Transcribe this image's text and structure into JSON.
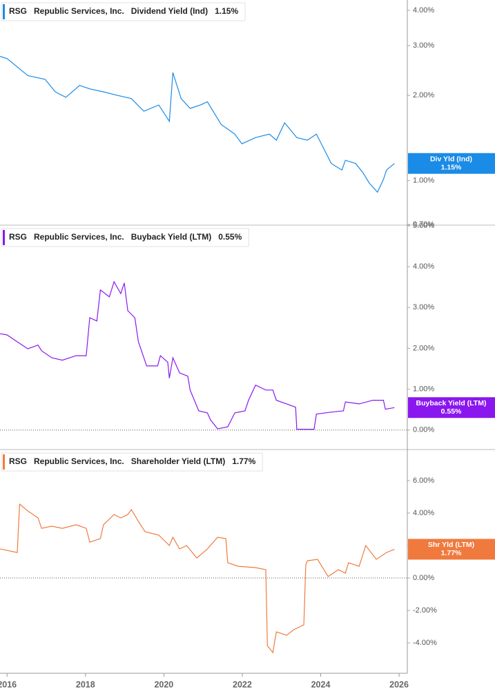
{
  "chart_data": [
    {
      "type": "line",
      "log_scale": true,
      "zero_line": false,
      "ticker": "RSG",
      "company": "Republic Services, Inc.",
      "current_value": "1.15%",
      "tag_label": "Div Yld (Ind)",
      "tag_value": "1.15%",
      "xlim": [
        2015.82,
        2026.21
      ],
      "ylim": [
        0.7,
        4.35
      ],
      "yticks": [
        {
          "value": 0.7,
          "label": "0.70%"
        },
        {
          "value": 1,
          "label": "1.00%"
        },
        {
          "value": 2,
          "label": "2.00%"
        },
        {
          "value": 3,
          "label": "3.00%"
        },
        {
          "value": 4,
          "label": "4.00%"
        }
      ],
      "x": [
        2015.82,
        2016.0,
        2016.53,
        2016.97,
        2017.23,
        2017.5,
        2017.85,
        2018.11,
        2018.46,
        2018.82,
        2019.17,
        2019.49,
        2019.87,
        2020.14,
        2020.23,
        2020.44,
        2020.67,
        2020.93,
        2021.11,
        2021.46,
        2021.81,
        2021.99,
        2022.34,
        2022.69,
        2022.87,
        2023.08,
        2023.39,
        2023.66,
        2023.89,
        2024.1,
        2024.27,
        2024.54,
        2024.63,
        2024.89,
        2025.07,
        2025.24,
        2025.45,
        2025.6,
        2025.68,
        2025.88
      ],
      "series": [
        {
          "name": "Dividend Yield (Ind)",
          "color": "#1a8be6",
          "values": [
            2.75,
            2.7,
            2.35,
            2.28,
            2.06,
            1.97,
            2.17,
            2.11,
            2.06,
            2.0,
            1.95,
            1.76,
            1.85,
            1.62,
            2.41,
            1.95,
            1.8,
            1.85,
            1.9,
            1.58,
            1.46,
            1.35,
            1.42,
            1.46,
            1.39,
            1.6,
            1.42,
            1.39,
            1.46,
            1.28,
            1.15,
            1.09,
            1.18,
            1.15,
            1.07,
            0.98,
            0.91,
            1.01,
            1.09,
            1.15
          ]
        }
      ]
    },
    {
      "type": "line",
      "log_scale": false,
      "zero_line": true,
      "ticker": "RSG",
      "company": "Republic Services, Inc.",
      "current_value": "0.55%",
      "tag_label": "Buyback Yield (LTM)",
      "tag_value": "0.55%",
      "xlim": [
        2015.82,
        2026.21
      ],
      "ylim": [
        -0.46,
        5.0
      ],
      "yticks": [
        {
          "value": 0,
          "label": "0.00%"
        },
        {
          "value": 1,
          "label": "1.00%"
        },
        {
          "value": 2,
          "label": "2.00%"
        },
        {
          "value": 3,
          "label": "3.00%"
        },
        {
          "value": 4,
          "label": "4.00%"
        },
        {
          "value": 5,
          "label": "5.00%"
        }
      ],
      "x": [
        2015.82,
        2016.0,
        2016.26,
        2016.53,
        2016.79,
        2016.88,
        2017.14,
        2017.41,
        2017.76,
        2018.02,
        2018.11,
        2018.29,
        2018.38,
        2018.61,
        2018.73,
        2018.9,
        2018.99,
        2019.08,
        2019.26,
        2019.35,
        2019.56,
        2019.84,
        2019.91,
        2020.1,
        2020.14,
        2020.23,
        2020.4,
        2020.61,
        2020.67,
        2020.89,
        2021.11,
        2021.19,
        2021.37,
        2021.63,
        2021.81,
        2022.07,
        2022.16,
        2022.34,
        2022.6,
        2022.78,
        2022.87,
        2023.13,
        2023.36,
        2023.39,
        2023.83,
        2023.89,
        2024.27,
        2024.58,
        2024.63,
        2024.98,
        2025.33,
        2025.6,
        2025.65,
        2025.88
      ],
      "series": [
        {
          "name": "Buyback Yield (LTM)",
          "color": "#8a17ee",
          "values": [
            2.36,
            2.33,
            2.16,
            1.99,
            2.08,
            1.94,
            1.77,
            1.71,
            1.82,
            1.82,
            2.75,
            2.67,
            3.43,
            3.26,
            3.63,
            3.34,
            3.6,
            2.92,
            2.75,
            2.16,
            1.57,
            1.57,
            1.82,
            1.66,
            1.27,
            1.77,
            1.4,
            1.32,
            0.98,
            0.47,
            0.42,
            0.25,
            0.03,
            0.08,
            0.42,
            0.47,
            0.73,
            1.1,
            0.98,
            0.98,
            0.73,
            0.64,
            0.56,
            0.02,
            0.02,
            0.39,
            0.44,
            0.47,
            0.69,
            0.64,
            0.73,
            0.73,
            0.51,
            0.55
          ]
        }
      ]
    },
    {
      "type": "line",
      "log_scale": false,
      "zero_line": true,
      "ticker": "RSG",
      "company": "Republic Services, Inc.",
      "current_value": "1.77%",
      "tag_label": "Shr Yld (LTM)",
      "tag_value": "1.77%",
      "xlim": [
        2015.82,
        2026.21
      ],
      "ylim": [
        -5.87,
        7.87
      ],
      "xticks": [
        2016,
        2018,
        2020,
        2022,
        2024,
        2026
      ],
      "yticks": [
        {
          "value": -4,
          "label": "-4.00%"
        },
        {
          "value": -2,
          "label": "-2.00%"
        },
        {
          "value": 0,
          "label": "0.00%"
        },
        {
          "value": 2,
          "label": "2.00%"
        },
        {
          "value": 4,
          "label": "4.00%"
        },
        {
          "value": 6,
          "label": "6.00%"
        }
      ],
      "x": [
        2015.82,
        2016.26,
        2016.32,
        2016.53,
        2016.79,
        2016.88,
        2017.14,
        2017.41,
        2017.76,
        2018.02,
        2018.11,
        2018.38,
        2018.46,
        2018.73,
        2018.9,
        2019.08,
        2019.17,
        2019.35,
        2019.52,
        2019.87,
        2020.14,
        2020.23,
        2020.4,
        2020.58,
        2020.84,
        2021.11,
        2021.37,
        2021.58,
        2021.63,
        2021.9,
        2022.34,
        2022.6,
        2022.64,
        2022.78,
        2022.87,
        2023.13,
        2023.31,
        2023.57,
        2023.62,
        2023.66,
        2023.92,
        2024.19,
        2024.45,
        2024.63,
        2024.71,
        2024.98,
        2025.15,
        2025.42,
        2025.68,
        2025.88
      ],
      "series": [
        {
          "name": "Shareholder Yield (LTM)",
          "color": "#f07a3e",
          "values": [
            1.79,
            1.57,
            4.55,
            4.13,
            3.7,
            3.06,
            3.19,
            3.06,
            3.28,
            3.06,
            2.21,
            2.43,
            3.28,
            3.91,
            3.7,
            3.91,
            4.21,
            3.49,
            2.85,
            2.64,
            2.0,
            2.51,
            1.79,
            2.0,
            1.23,
            1.79,
            2.51,
            2.43,
            0.94,
            0.72,
            0.64,
            0.51,
            -4.17,
            -4.6,
            -3.32,
            -3.53,
            -3.19,
            -2.89,
            0.81,
            1.06,
            1.15,
            0.09,
            0.51,
            0.3,
            0.94,
            0.72,
            2.0,
            1.15,
            1.57,
            1.77
          ]
        }
      ]
    }
  ]
}
